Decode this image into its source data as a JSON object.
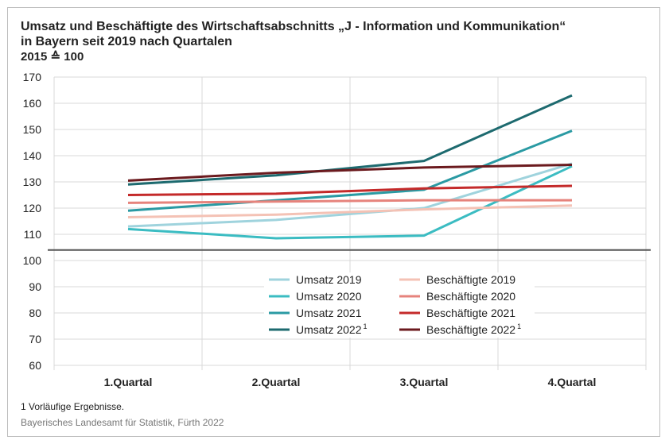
{
  "header": {
    "title_line1": "Umsatz und Beschäftigte des Wirtschaftsabschnitts „J - Information und Kommunikation“",
    "title_line2": "in Bayern seit 2019 nach Quartalen",
    "subtitle": "2015 ≙ 100"
  },
  "chart_data": {
    "type": "line",
    "categories": [
      "1.Quartal",
      "2.Quartal",
      "3.Quartal",
      "4.Quartal"
    ],
    "ylim": [
      60,
      170
    ],
    "yticks": [
      60,
      70,
      80,
      90,
      100,
      110,
      120,
      130,
      140,
      150,
      160,
      170
    ],
    "reference_line": 104,
    "grid": true,
    "legend_position": "center",
    "series": [
      {
        "name": "Umsatz 2019",
        "color": "#9fd3dd",
        "values": [
          113,
          115.5,
          120,
          137
        ]
      },
      {
        "name": "Umsatz 2020",
        "color": "#3bbcc2",
        "values": [
          112,
          108.5,
          109.5,
          136
        ]
      },
      {
        "name": "Umsatz 2021",
        "color": "#2a9aa3",
        "values": [
          119,
          123,
          127,
          149.5
        ]
      },
      {
        "name": "Umsatz 2022",
        "sup": "1",
        "color": "#1d6a6f",
        "values": [
          129,
          132.5,
          138,
          163
        ]
      },
      {
        "name": "Beschäftigte 2019",
        "color": "#f4c2b5",
        "values": [
          116.5,
          117.5,
          119.5,
          121
        ]
      },
      {
        "name": "Beschäftigte 2020",
        "color": "#e6837c",
        "values": [
          122,
          122.5,
          123,
          123
        ]
      },
      {
        "name": "Beschäftigte 2021",
        "color": "#c42a2a",
        "values": [
          125,
          125.5,
          127.5,
          128.5
        ]
      },
      {
        "name": "Beschäftigte 2022",
        "sup": "1",
        "color": "#6b1a1e",
        "values": [
          130.5,
          133.5,
          135.5,
          136.5
        ]
      }
    ]
  },
  "footer": {
    "footnote": "1  Vorläufige Ergebnisse.",
    "source": "Bayerisches Landesamt für Statistik, Fürth 2022"
  }
}
